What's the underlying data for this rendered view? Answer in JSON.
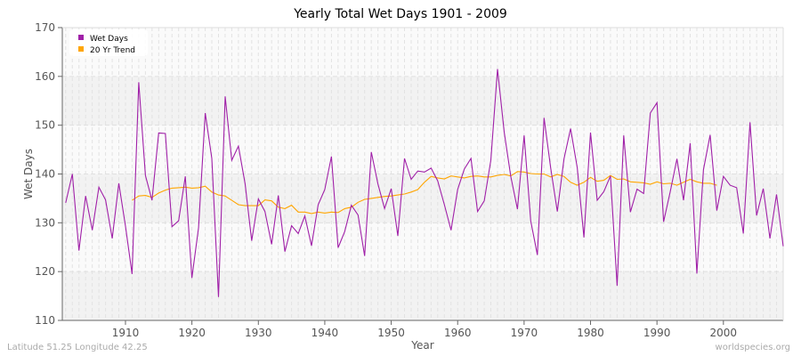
{
  "chart_data": {
    "type": "line",
    "title": "Yearly Total Wet Days 1901 - 2009",
    "xlabel": "Year",
    "ylabel": "Wet Days",
    "xlim": [
      1901,
      2009
    ],
    "ylim": [
      110,
      170
    ],
    "x_ticks": [
      1910,
      1920,
      1930,
      1940,
      1950,
      1960,
      1970,
      1980,
      1990,
      2000
    ],
    "y_ticks": [
      110,
      120,
      130,
      140,
      150,
      160,
      170
    ],
    "grid": true,
    "legend": "top-left",
    "series": [
      {
        "name": "Wet Days",
        "color": "#a020a8",
        "start_year": 1901,
        "values": [
          134.1,
          140,
          124.3,
          135.5,
          128.5,
          137.3,
          134.7,
          126.8,
          138.1,
          129.3,
          119.5,
          158.8,
          139.7,
          134.6,
          148.4,
          148.3,
          129.2,
          130.4,
          139.5,
          118.7,
          129,
          152.5,
          143.2,
          114.8,
          155.9,
          142.8,
          145.7,
          138,
          126.3,
          134.9,
          132.3,
          125.6,
          135.6,
          124.1,
          129.4,
          127.8,
          131.4,
          125.3,
          133.7,
          136.8,
          143.6,
          124.9,
          128.2,
          133.6,
          131.6,
          123.2,
          144.5,
          138,
          132.9,
          137,
          127.3,
          143.2,
          138.9,
          140.6,
          140.4,
          141.2,
          138.6,
          133.7,
          128.5,
          136.8,
          141,
          143.2,
          132.3,
          134.5,
          142.8,
          161.5,
          148.6,
          139.5,
          132.8,
          147.9,
          130.4,
          123.4,
          151.5,
          141.3,
          132.3,
          143.1,
          149.3,
          141.3,
          127,
          148.5,
          134.6,
          136.4,
          139.6,
          117.1,
          147.9,
          132.2,
          136.9,
          136,
          152.5,
          154.6,
          130.2,
          136.4,
          143.1,
          134.6,
          146.3,
          119.6,
          140.9,
          148,
          132.5,
          139.5,
          137.7,
          137.2,
          127.8,
          150.6,
          131.5,
          137,
          126.8,
          135.8,
          125.2
        ]
      },
      {
        "name": "20 Yr Trend",
        "color": "#ffa500",
        "start_year": 1911,
        "values": [
          134.6,
          135.5,
          135.6,
          135.2,
          136.1,
          136.7,
          137.1,
          137.2,
          137.3,
          137.1,
          137.2,
          137.5,
          136.3,
          135.7,
          135.5,
          134.6,
          133.7,
          133.5,
          133.5,
          133.5,
          134.7,
          134.5,
          133.2,
          132.9,
          133.6,
          132.2,
          132.2,
          131.9,
          132.2,
          132,
          132.2,
          132.1,
          132.9,
          133.2,
          134.2,
          134.8,
          135,
          135.2,
          135.4,
          135.5,
          135.7,
          135.9,
          136.3,
          136.8,
          138.3,
          139.5,
          139.2,
          139,
          139.6,
          139.4,
          139.2,
          139.5,
          139.6,
          139.4,
          139.4,
          139.7,
          139.9,
          139.6,
          140.5,
          140.4,
          140.1,
          140,
          140,
          139.4,
          139.9,
          139.5,
          138.3,
          137.7,
          138.3,
          139.3,
          138.5,
          138.7,
          139.7,
          138.9,
          139,
          138.4,
          138.3,
          138.2,
          137.9,
          138.4,
          138,
          138.1,
          137.7,
          138.3,
          138.9,
          138.4,
          138.1,
          138.1,
          137.7
        ]
      }
    ]
  },
  "footer": {
    "location": "Latitude 51.25 Longitude 42.25",
    "site": "worldspecies.org"
  }
}
